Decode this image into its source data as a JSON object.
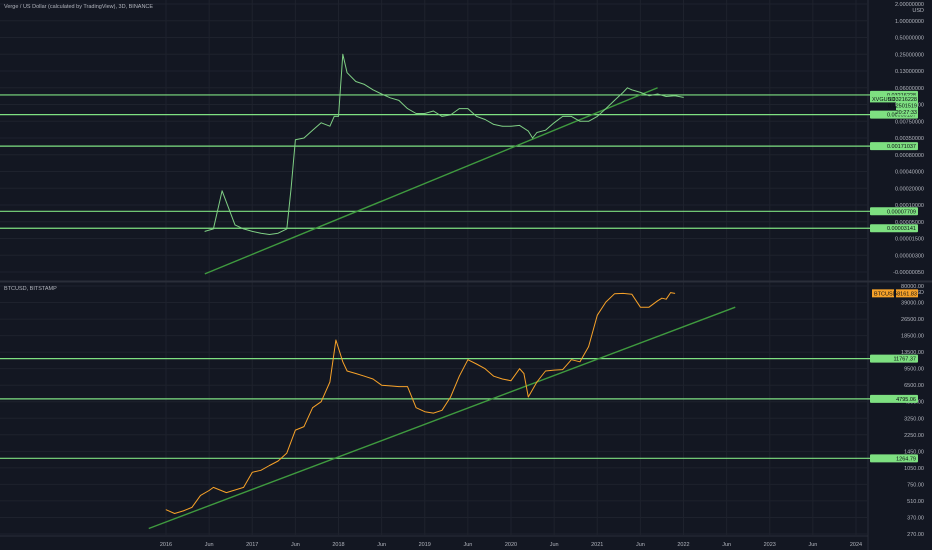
{
  "theme": {
    "background": "#131722",
    "grid": "#1e222d",
    "separator": "#2a2e39",
    "axis_text": "#b2b5be",
    "level_line": "#7ee081",
    "trend_line": "#3f9a3f",
    "xvg_line": "#7fcf84",
    "btc_line": "#f7a229"
  },
  "top_pane": {
    "title": "Verge / US Dollar (calculated by TradingView), 3D, BINANCE",
    "unit": "USD",
    "symbol_tag": "XVGUSD",
    "price_tags": [
      "0.03216228",
      "0.02501519",
      "20:27:33"
    ]
  },
  "bottom_pane": {
    "title": "BTCUSD, BITSTAMP",
    "unit": "USD",
    "symbol_tag": "BTCUSD",
    "price_tags": [
      "58161.83"
    ]
  },
  "chart_data": [
    {
      "type": "line",
      "name": "XVGUSD",
      "scale": "log",
      "y_ticks": [
        "2.00000000",
        "1.00000000",
        "0.50000000",
        "0.25000000",
        "0.13000000",
        "0.06000000",
        "0.01400000",
        "0.00750000",
        "0.00350000",
        "0.00080000",
        "0.00040000",
        "0.00020000",
        "0.00010000",
        "0.00005000",
        "0.00001500",
        "0.00000300",
        "-0.00000050"
      ],
      "x_ticks": [
        "2016",
        "Jun",
        "2017",
        "Jun",
        "2018",
        "Jun",
        "2019",
        "Jun",
        "2020",
        "Jun",
        "2021",
        "Jun",
        "2022",
        "Jun",
        "2023",
        "Jun",
        "2024"
      ],
      "horizontal_levels": [
        "0.03216228",
        "0.00959137",
        "0.00171037",
        "0.00007709",
        "0.00003141"
      ],
      "trendline": {
        "x": [
          2016.45,
          2021.7
        ],
        "y": [
          "0.00000050",
          "0.06000000"
        ]
      },
      "series": [
        {
          "x": [
            2016.45,
            2016.55,
            2016.65,
            2016.8,
            2016.9,
            2017.0,
            2017.1,
            2017.2,
            2017.3,
            2017.4,
            2017.45,
            2017.5,
            2017.6,
            2017.7,
            2017.8,
            2017.9,
            2017.95,
            2018.0,
            2018.05,
            2018.1,
            2018.2,
            2018.3,
            2018.4,
            2018.5,
            2018.6,
            2018.7,
            2018.8,
            2018.9,
            2019.0,
            2019.1,
            2019.2,
            2019.3,
            2019.4,
            2019.5,
            2019.6,
            2019.7,
            2019.8,
            2019.9,
            2020.0,
            2020.1,
            2020.2,
            2020.25,
            2020.3,
            2020.4,
            2020.5,
            2020.6,
            2020.7,
            2020.8,
            2020.9,
            2021.0,
            2021.1,
            2021.2,
            2021.3,
            2021.35,
            2021.4,
            2021.5,
            2021.6,
            2021.7,
            2021.8,
            2021.9,
            2022.0
          ],
          "y": [
            2.5e-05,
            3e-05,
            0.00018,
            4e-05,
            3e-05,
            2.5e-05,
            2.2e-05,
            2e-05,
            2.2e-05,
            3e-05,
            0.0002,
            0.003,
            0.0035,
            0.005,
            0.007,
            0.006,
            0.009,
            0.009,
            0.25,
            0.12,
            0.08,
            0.07,
            0.05,
            0.035,
            0.025,
            0.02,
            0.012,
            0.01,
            0.01,
            0.011,
            0.009,
            0.0095,
            0.012,
            0.012,
            0.009,
            0.008,
            0.0065,
            0.006,
            0.006,
            0.0062,
            0.0048,
            0.0035,
            0.0045,
            0.005,
            0.007,
            0.009,
            0.009,
            0.0075,
            0.0075,
            0.009,
            0.012,
            0.02,
            0.04,
            0.06,
            0.05,
            0.04,
            0.03,
            0.035,
            0.028,
            0.03,
            0.026
          ]
        }
      ]
    },
    {
      "type": "line",
      "name": "BTCUSD",
      "scale": "log",
      "y_ticks": [
        "80000.00",
        "39000.00",
        "26500.00",
        "18500.00",
        "13500.00",
        "9500.00",
        "6500.00",
        "4500.00",
        "3250.00",
        "2250.00",
        "1450.00",
        "1050.00",
        "750.00",
        "510.00",
        "370.00",
        "270.00"
      ],
      "x_ticks": [
        "2016",
        "Jun",
        "2017",
        "Jun",
        "2018",
        "Jun",
        "2019",
        "Jun",
        "2020",
        "Jun",
        "2021",
        "Jun",
        "2022",
        "Jun",
        "2023",
        "Jun",
        "2024"
      ],
      "horizontal_levels": [
        "11767.37",
        "4795.06",
        "1264.79"
      ],
      "trendline": {
        "x": [
          2015.8,
          2022.6
        ],
        "y": [
          300,
          35000
        ]
      },
      "series": [
        {
          "x": [
            2016.0,
            2016.1,
            2016.2,
            2016.3,
            2016.4,
            2016.5,
            2016.55,
            2016.7,
            2016.9,
            2017.0,
            2017.1,
            2017.2,
            2017.3,
            2017.4,
            2017.5,
            2017.6,
            2017.7,
            2017.8,
            2017.9,
            2017.97,
            2018.05,
            2018.1,
            2018.2,
            2018.3,
            2018.4,
            2018.5,
            2018.6,
            2018.7,
            2018.8,
            2018.9,
            2019.0,
            2019.1,
            2019.2,
            2019.3,
            2019.4,
            2019.5,
            2019.6,
            2019.7,
            2019.8,
            2019.9,
            2020.0,
            2020.1,
            2020.15,
            2020.2,
            2020.3,
            2020.4,
            2020.5,
            2020.6,
            2020.7,
            2020.8,
            2020.9,
            2021.0,
            2021.1,
            2021.2,
            2021.3,
            2021.4,
            2021.5,
            2021.6,
            2021.7,
            2021.75,
            2021.8,
            2021.85,
            2021.9
          ],
          "y": [
            430,
            400,
            420,
            450,
            580,
            650,
            700,
            620,
            700,
            960,
            1000,
            1100,
            1200,
            1400,
            2500,
            2700,
            4000,
            4500,
            7000,
            17000,
            11000,
            9000,
            8500,
            8000,
            7500,
            6500,
            6400,
            6300,
            6300,
            4000,
            3700,
            3600,
            3800,
            5000,
            8000,
            11500,
            10500,
            9500,
            8000,
            7500,
            7200,
            9500,
            8500,
            5000,
            7000,
            9000,
            9200,
            9300,
            11500,
            11000,
            15000,
            29000,
            40000,
            57000,
            58000,
            56000,
            35000,
            35000,
            42000,
            47000,
            45000,
            60000,
            58000
          ]
        }
      ]
    }
  ]
}
